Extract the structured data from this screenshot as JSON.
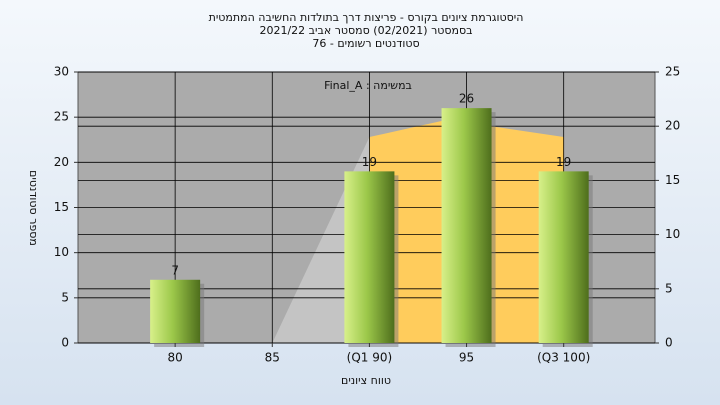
{
  "chart_data": {
    "type": "bar",
    "title": [
      "היסטוגרמת ציונים בקורס - פריצות דרך בתולדות החשיבה המתמטית",
      "בסמסטר  (02/2021)  סמסטר אביב 2021/22",
      "סטודנטים רשומים - 76"
    ],
    "annotation": "במשימה : Final_A",
    "xlabel": "טווח ציונים",
    "ylabel": "מספר סטודנטים",
    "x": [
      80,
      85,
      90,
      95,
      100
    ],
    "values": [
      7,
      0,
      19,
      26,
      19
    ],
    "color": "#8fbf3a",
    "xlim": [
      75,
      104.7
    ],
    "xticks": [
      80,
      85,
      {
        "value": 90,
        "label": "(Q1 90)"
      },
      95,
      {
        "value": 100,
        "label": "(Q3 100)"
      }
    ],
    "ylim": [
      0,
      30
    ],
    "yticks": [
      0,
      5,
      10,
      15,
      20,
      25,
      30
    ],
    "y2lim": [
      0,
      25
    ],
    "y2ticks": [
      0,
      5,
      10,
      15,
      20,
      25
    ],
    "areas": [
      {
        "axis": "y2",
        "color": "#c4c4c4",
        "x": [
          85,
          90
        ],
        "values": [
          0,
          19
        ]
      },
      {
        "axis": "y2",
        "color": "#ffcc5c",
        "x": [
          90,
          94,
          100
        ],
        "values": [
          19,
          20.6,
          19
        ]
      }
    ],
    "grid": true
  }
}
